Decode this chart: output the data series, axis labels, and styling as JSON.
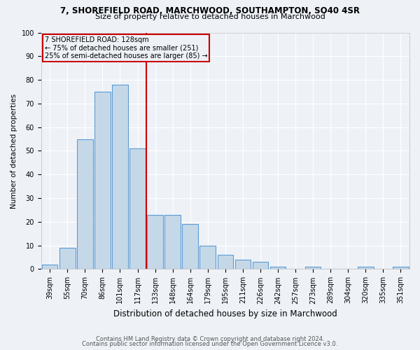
{
  "title1": "7, SHOREFIELD ROAD, MARCHWOOD, SOUTHAMPTON, SO40 4SR",
  "title2": "Size of property relative to detached houses in Marchwood",
  "xlabel": "Distribution of detached houses by size in Marchwood",
  "ylabel": "Number of detached properties",
  "categories": [
    "39sqm",
    "55sqm",
    "70sqm",
    "86sqm",
    "101sqm",
    "117sqm",
    "133sqm",
    "148sqm",
    "164sqm",
    "179sqm",
    "195sqm",
    "211sqm",
    "226sqm",
    "242sqm",
    "257sqm",
    "273sqm",
    "289sqm",
    "304sqm",
    "320sqm",
    "335sqm",
    "351sqm"
  ],
  "values": [
    2,
    9,
    55,
    75,
    78,
    51,
    23,
    23,
    19,
    10,
    6,
    4,
    3,
    1,
    0,
    1,
    0,
    0,
    1,
    0,
    1
  ],
  "bar_color": "#c5d8e8",
  "bar_edge_color": "#5b9bd5",
  "marker_line_color": "#cc0000",
  "annotation_line1": "7 SHOREFIELD ROAD: 128sqm",
  "annotation_line2": "← 75% of detached houses are smaller (251)",
  "annotation_line3": "25% of semi-detached houses are larger (85) →",
  "annotation_box_color": "#cc0000",
  "ylim": [
    0,
    100
  ],
  "yticks": [
    0,
    10,
    20,
    30,
    40,
    50,
    60,
    70,
    80,
    90,
    100
  ],
  "footer1": "Contains HM Land Registry data © Crown copyright and database right 2024.",
  "footer2": "Contains public sector information licensed under the Open Government Licence v3.0.",
  "background_color": "#eef2f7",
  "grid_color": "#ffffff",
  "title1_fontsize": 8.5,
  "title2_fontsize": 8.0,
  "xlabel_fontsize": 8.5,
  "ylabel_fontsize": 7.5,
  "tick_fontsize": 7.0,
  "annotation_fontsize": 7.0,
  "footer_fontsize": 6.0
}
